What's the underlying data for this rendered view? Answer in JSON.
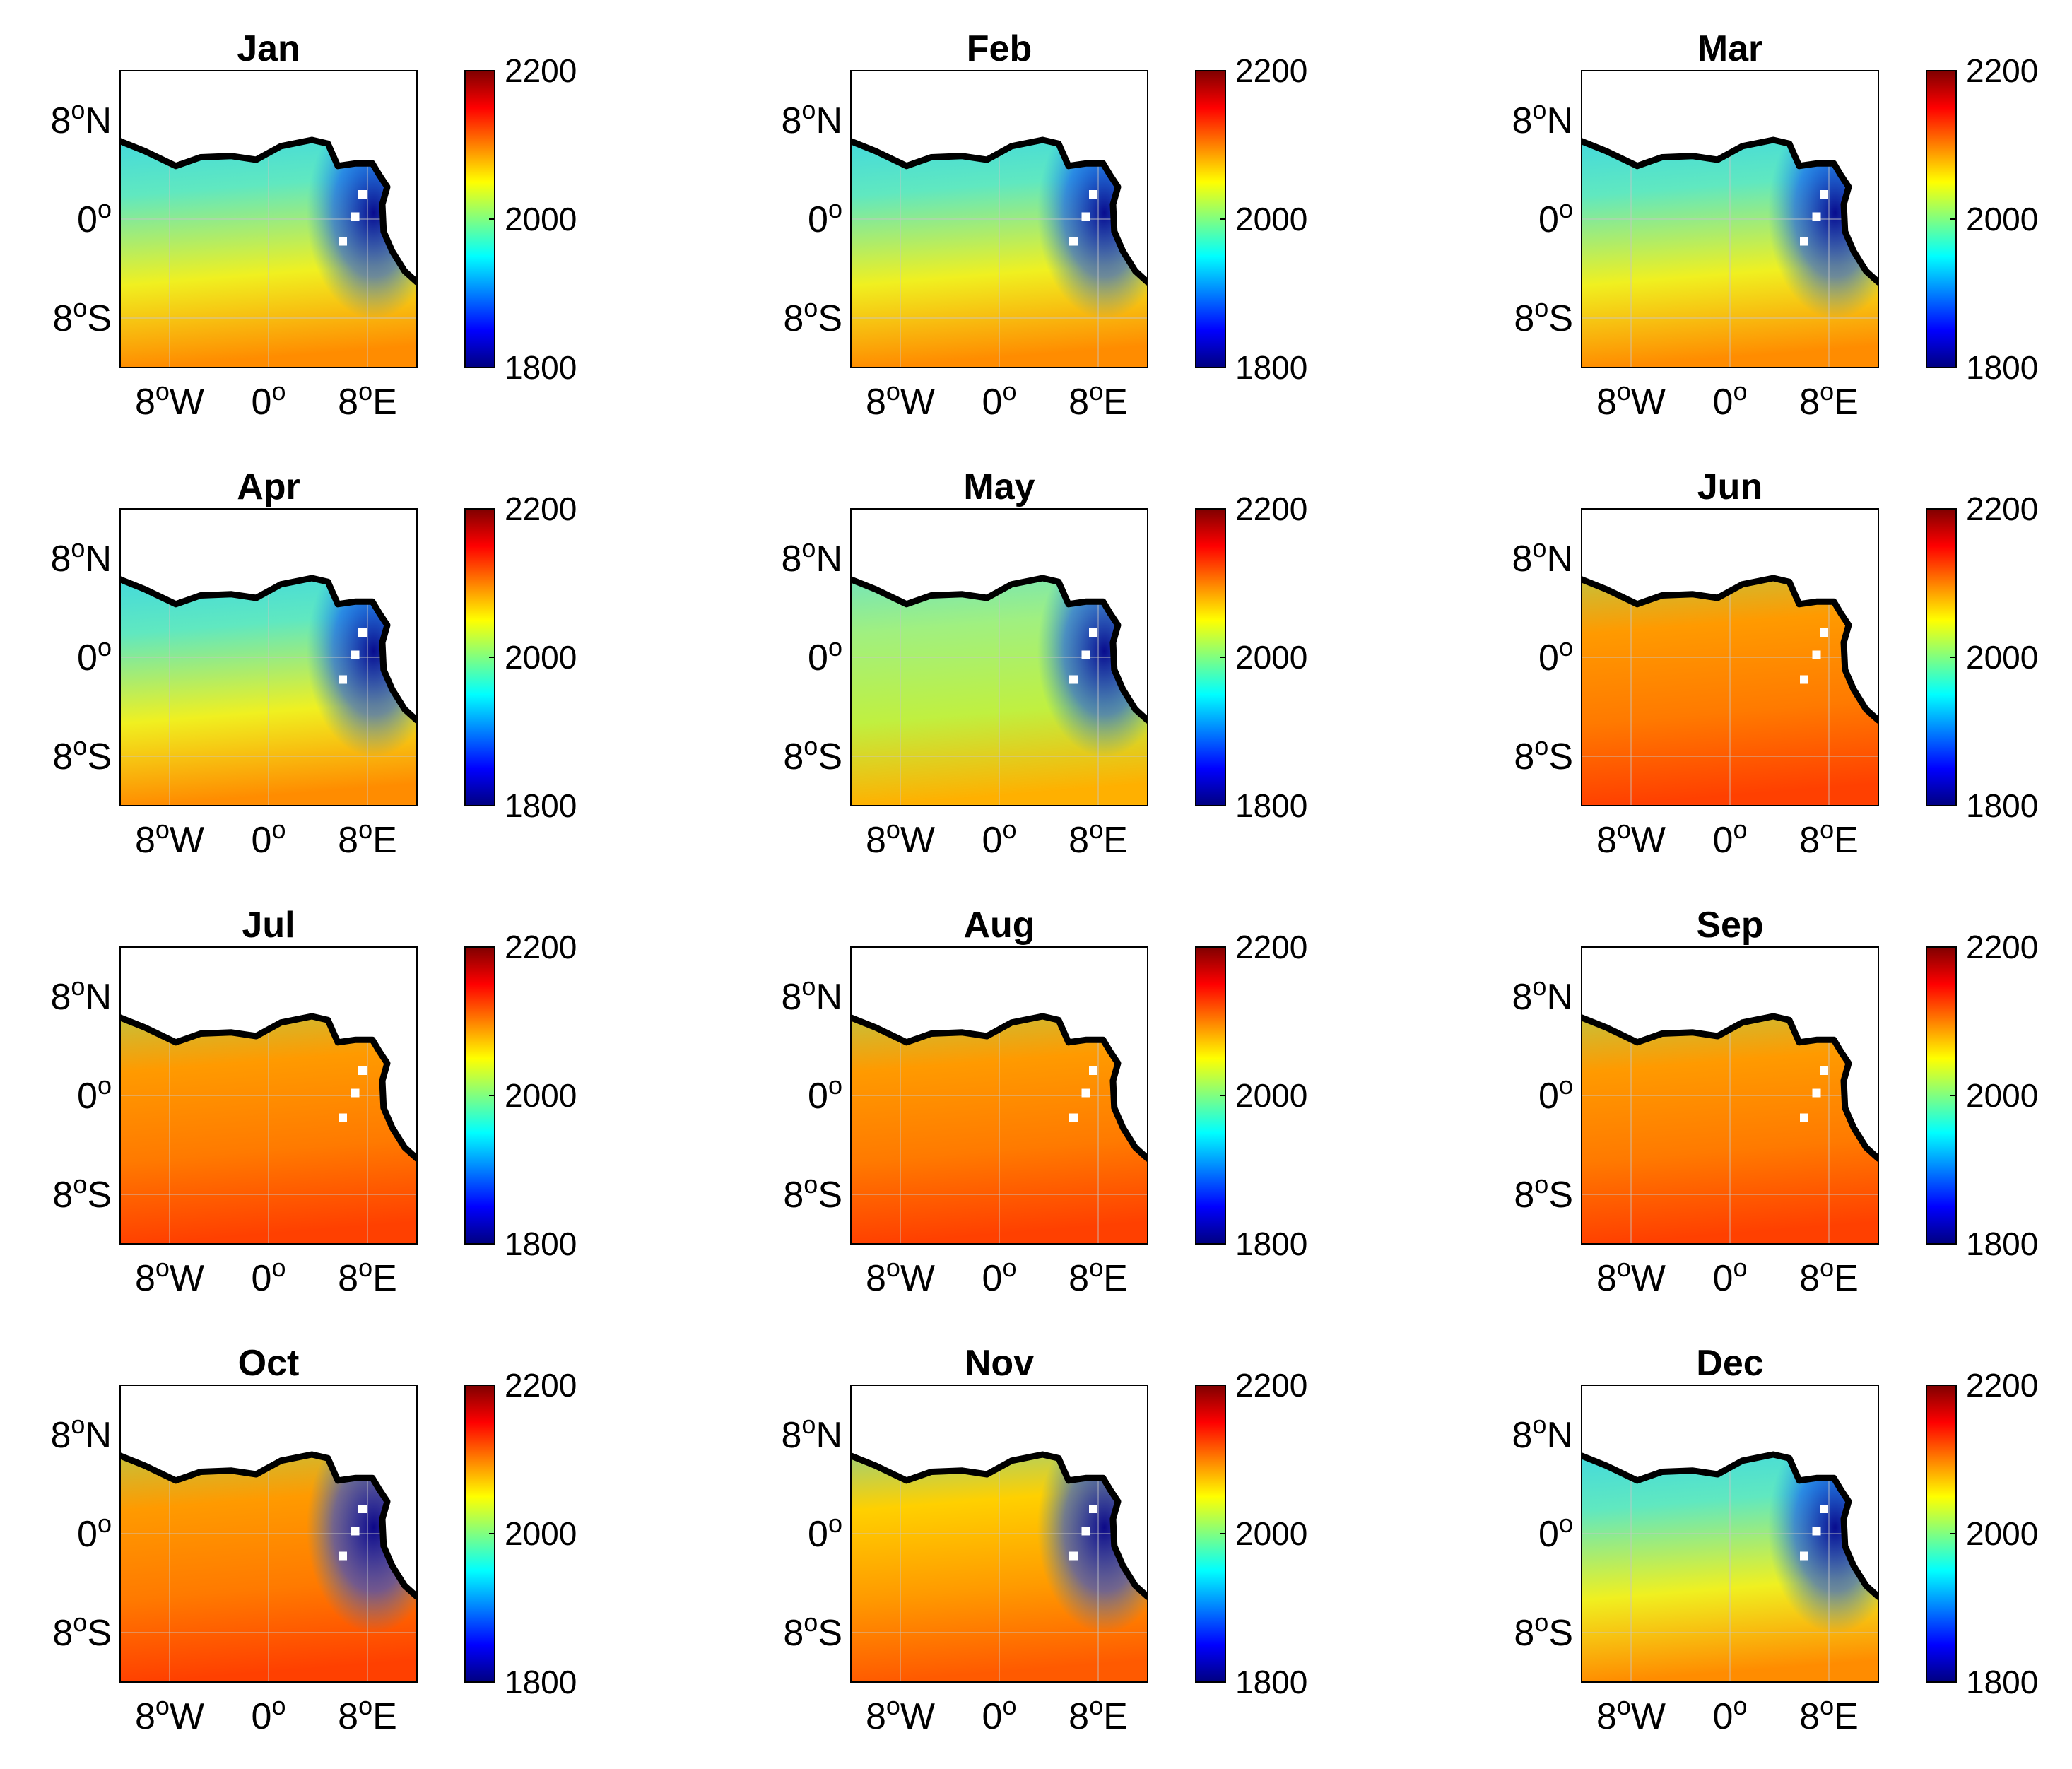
{
  "chart_data": {
    "type": "heatmap",
    "panels": [
      {
        "title": "Jan",
        "state": "dry",
        "offshore_low": true
      },
      {
        "title": "Feb",
        "state": "dry",
        "offshore_low": true
      },
      {
        "title": "Mar",
        "state": "dry",
        "offshore_low": true
      },
      {
        "title": "Apr",
        "state": "dry",
        "offshore_low": true
      },
      {
        "title": "May",
        "state": "transition",
        "offshore_low": true
      },
      {
        "title": "Jun",
        "state": "upwelling",
        "offshore_low": false
      },
      {
        "title": "Jul",
        "state": "upwelling",
        "offshore_low": false
      },
      {
        "title": "Aug",
        "state": "upwelling",
        "offshore_low": false
      },
      {
        "title": "Sep",
        "state": "upwelling",
        "offshore_low": false
      },
      {
        "title": "Oct",
        "state": "upwelling",
        "offshore_low": true
      },
      {
        "title": "Nov",
        "state": "late",
        "offshore_low": true
      },
      {
        "title": "Dec",
        "state": "dry",
        "offshore_low": true
      }
    ],
    "x_ticks": [
      {
        "deg": "8",
        "dir": "W",
        "value": -8
      },
      {
        "deg": "0",
        "dir": "",
        "value": 0
      },
      {
        "deg": "8",
        "dir": "E",
        "value": 8
      }
    ],
    "y_ticks": [
      {
        "deg": "8",
        "dir": "N",
        "value": 8
      },
      {
        "deg": "0",
        "dir": "",
        "value": 0
      },
      {
        "deg": "8",
        "dir": "S",
        "value": -8
      }
    ],
    "degree_symbol": "o",
    "xlim": [
      -12,
      12
    ],
    "ylim": [
      -12,
      12
    ],
    "colorbar": {
      "min": 1800,
      "max": 2200,
      "ticks": [
        "2200",
        "2000",
        "1800"
      ],
      "colormap": "jet"
    },
    "grid": true,
    "land_color": "#ffffff",
    "coast_color": "#000000"
  }
}
